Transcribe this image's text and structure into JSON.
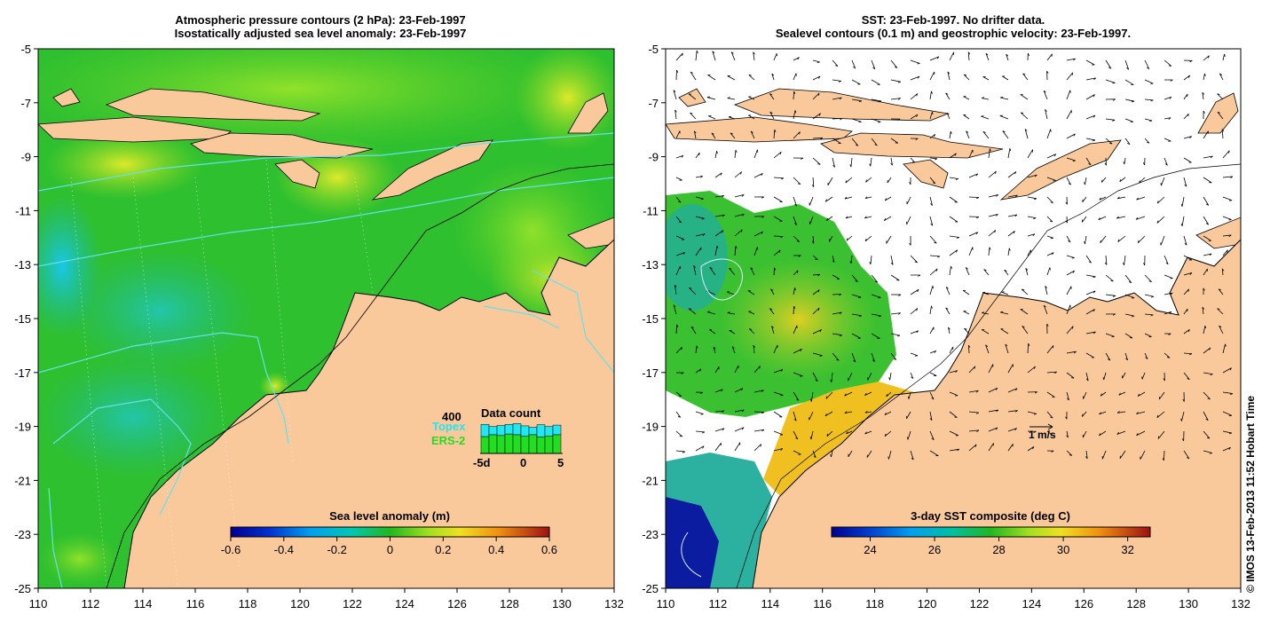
{
  "left_panel": {
    "title_line1": "Atmospheric pressure contours (2 hPa): 23-Feb-1997",
    "title_line2": "Isostatically adjusted sea level anomaly: 23-Feb-1997",
    "x_ticks": [
      "110",
      "112",
      "114",
      "116",
      "118",
      "120",
      "122",
      "124",
      "126",
      "128",
      "130",
      "132"
    ],
    "y_ticks": [
      "-5",
      "-7",
      "-9",
      "-11",
      "-13",
      "-15",
      "-17",
      "-19",
      "-21",
      "-23",
      "-25"
    ],
    "colorbar": {
      "title": "Sea level anomaly (m)",
      "ticks": [
        "-0.6",
        "-0.4",
        "-0.2",
        "0",
        "0.2",
        "0.4",
        "0.6"
      ],
      "min": -0.6,
      "max": 0.6
    },
    "inset": {
      "title": "Data count",
      "max_label": "400",
      "series_a": "Topex",
      "series_b": "ERS-2",
      "series_a_color": "#22e6f0",
      "series_b_color": "#22dd22",
      "x_start": "-5d",
      "x_mid": "0",
      "x_end": "5",
      "topex_fraction": [
        0.78,
        0.72,
        0.75,
        0.78,
        0.8,
        0.74,
        0.7,
        0.77,
        0.72,
        0.76
      ],
      "ers_fraction": [
        0.45,
        0.5,
        0.48,
        0.52,
        0.5,
        0.46,
        0.5,
        0.44,
        0.47,
        0.5
      ]
    }
  },
  "right_panel": {
    "title_line1": "SST: 23-Feb-1997. No drifter data.",
    "title_line2": "Sealevel contours (0.1 m) and geostrophic velocity: 23-Feb-1997.",
    "x_ticks": [
      "110",
      "112",
      "114",
      "116",
      "118",
      "120",
      "122",
      "124",
      "126",
      "128",
      "130",
      "132"
    ],
    "y_ticks": [
      "-5",
      "-7",
      "-9",
      "-11",
      "-13",
      "-15",
      "-17",
      "-19",
      "-21",
      "-23",
      "-25"
    ],
    "scale_label": "1 m/s",
    "colorbar": {
      "title": "3-day SST composite (deg C)",
      "ticks": [
        "24",
        "26",
        "28",
        "30",
        "32"
      ],
      "tick_values": [
        24,
        26,
        28,
        30,
        32
      ],
      "min": 22.8,
      "max": 32.7
    }
  },
  "credit": "© IMOS 13-Feb-2013 11:52 Hobart Time",
  "colors": {
    "land": "#f9c99b",
    "sea_base": "#33c233",
    "coast": "#000000",
    "pressure_contour": "#66e0ea",
    "sst_background": "#ffffff"
  }
}
